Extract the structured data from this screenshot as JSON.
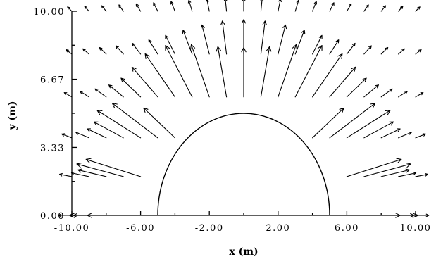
{
  "chart_data": {
    "type": "vector-field",
    "title": "",
    "xlabel": "x (m)",
    "ylabel": "y (m)",
    "xlim": [
      -10,
      10
    ],
    "ylim": [
      0,
      10
    ],
    "xticks": [
      -10,
      -6,
      -2,
      2,
      6,
      10
    ],
    "xtick_labels": [
      "-10.00",
      "-6.00",
      "-2.00",
      "2.00",
      "6.00",
      "10.00"
    ],
    "yticks": [
      0,
      3.33,
      6.67,
      10
    ],
    "ytick_labels": [
      "0.00",
      "3.33",
      "6.67",
      "10.00"
    ],
    "grid": false,
    "obstacle": {
      "shape": "semicircle",
      "center": [
        0,
        0
      ],
      "radius": 5
    },
    "vector_rows_y": [
      0,
      1.9,
      3.8,
      5.8,
      7.9,
      10.0
    ],
    "vector_columns_x": [
      -10,
      -9,
      -8,
      -7,
      -6,
      -5,
      -4,
      -3,
      -2,
      -1,
      0,
      1,
      2,
      3,
      4,
      5,
      6,
      7,
      8,
      9,
      10
    ]
  }
}
